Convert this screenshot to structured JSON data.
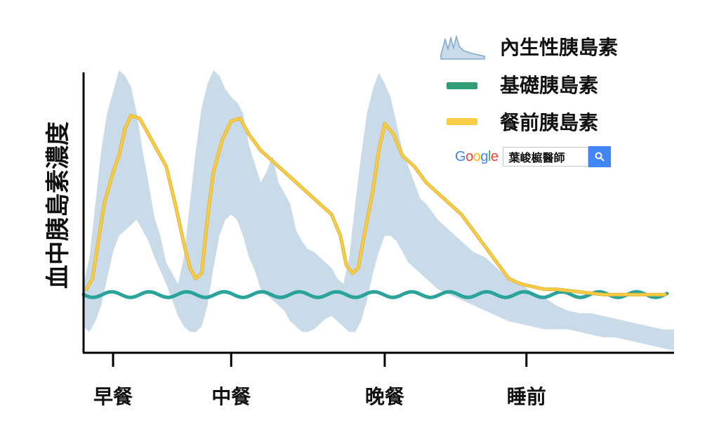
{
  "chart_data": {
    "type": "area",
    "title": "",
    "ylabel": "血中胰島素濃度",
    "xlabel": "",
    "ylim": [
      0,
      100
    ],
    "xlim": [
      0,
      100
    ],
    "grid": false,
    "legend_position": "top-right",
    "x_ticks": [
      {
        "x": 5,
        "label": "早餐"
      },
      {
        "x": 25,
        "label": "中餐"
      },
      {
        "x": 51,
        "label": "晚餐"
      },
      {
        "x": 75,
        "label": "睡前"
      }
    ],
    "series": [
      {
        "name": "內生性胰島素",
        "kind": "band",
        "color": "#c9dbe9",
        "x": [
          0,
          1,
          2,
          3,
          4,
          5,
          6,
          7,
          8,
          9,
          10,
          11,
          12,
          13,
          14,
          15,
          16,
          17,
          18,
          19,
          20,
          21,
          22,
          23,
          24,
          25,
          26,
          27,
          28,
          29,
          30,
          31,
          32,
          33,
          34,
          35,
          36,
          37,
          38,
          39,
          40,
          41,
          42,
          43,
          44,
          45,
          46,
          47,
          48,
          49,
          50,
          51,
          52,
          53,
          54,
          55,
          56,
          57,
          58,
          59,
          60,
          62,
          64,
          66,
          68,
          70,
          72,
          74,
          76,
          78,
          80,
          82,
          84,
          86,
          88,
          90,
          92,
          94,
          96,
          98,
          100
        ],
        "upper": [
          20,
          30,
          50,
          70,
          84,
          92,
          100,
          98,
          94,
          84,
          70,
          58,
          45,
          38,
          28,
          24,
          20,
          30,
          50,
          70,
          86,
          95,
          100,
          98,
          93,
          90,
          88,
          84,
          72,
          65,
          58,
          62,
          68,
          58,
          54,
          50,
          40,
          36,
          33,
          32,
          30,
          28,
          26,
          22,
          20,
          30,
          50,
          68,
          84,
          93,
          99,
          95,
          90,
          80,
          70,
          64,
          58,
          52,
          50,
          47,
          44,
          40,
          36,
          32,
          30,
          26,
          22,
          20,
          17,
          15,
          12,
          10,
          9,
          9,
          8,
          7,
          6,
          5,
          4,
          3,
          3
        ],
        "lower": [
          4,
          2,
          6,
          12,
          22,
          32,
          38,
          40,
          42,
          44,
          40,
          36,
          30,
          25,
          20,
          14,
          8,
          4,
          2,
          2,
          4,
          12,
          26,
          38,
          44,
          46,
          44,
          38,
          30,
          25,
          18,
          16,
          14,
          12,
          10,
          6,
          4,
          2,
          2,
          3,
          5,
          7,
          8,
          6,
          4,
          2,
          2,
          6,
          14,
          24,
          32,
          38,
          38,
          36,
          32,
          28,
          26,
          24,
          22,
          20,
          18,
          16,
          14,
          12,
          10,
          8,
          6,
          5,
          4,
          3,
          3,
          3,
          2,
          1,
          0,
          0,
          -1,
          -2,
          -3,
          -4,
          -5
        ]
      },
      {
        "name": "基礎胰島素",
        "kind": "line",
        "color": "#2aa39a",
        "x": [
          0,
          5,
          10,
          15,
          20,
          25,
          30,
          35,
          40,
          45,
          50,
          55,
          60,
          65,
          70,
          75,
          80,
          85,
          90,
          95,
          100
        ],
        "values": [
          16,
          16,
          16,
          16,
          16,
          16,
          16,
          16,
          16,
          16,
          16,
          16,
          16,
          16,
          16,
          16,
          16,
          16,
          16,
          16,
          16
        ]
      },
      {
        "name": "餐前胰島素",
        "kind": "line",
        "color": "#f6cd45",
        "x": [
          0.5,
          1.5,
          2.5,
          3.5,
          5,
          6,
          7,
          8,
          9.5,
          11,
          12.5,
          14,
          15.5,
          17,
          18,
          19,
          20,
          21,
          22,
          23.5,
          25,
          26.5,
          28,
          30,
          32,
          35,
          38,
          40,
          42,
          43.5,
          44.5,
          45.5,
          46.5,
          47.5,
          49,
          50,
          51,
          52.5,
          54,
          56,
          58,
          61,
          64,
          66,
          68,
          70,
          72,
          74,
          76,
          78,
          80,
          84,
          88,
          92,
          96,
          98.5
        ],
        "values": [
          18,
          22,
          36,
          50,
          62,
          68,
          78,
          83,
          82,
          76,
          70,
          64,
          50,
          35,
          26,
          22,
          24,
          45,
          62,
          74,
          81,
          82,
          76,
          70,
          66,
          60,
          54,
          50,
          46,
          38,
          27,
          24,
          26,
          38,
          55,
          70,
          80,
          76,
          68,
          64,
          58,
          52,
          46,
          40,
          34,
          28,
          22,
          20,
          19,
          18,
          18,
          17,
          16,
          16,
          16,
          16
        ]
      }
    ]
  },
  "search_badge": {
    "logo": "Google",
    "query": "葉峻榳醫師",
    "button_icon": "search-icon"
  }
}
